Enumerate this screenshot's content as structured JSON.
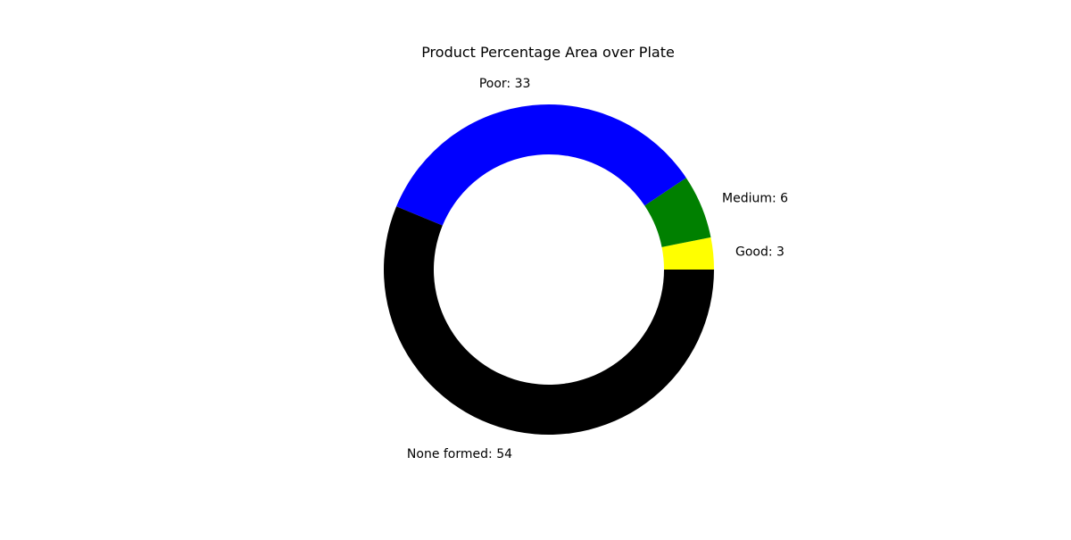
{
  "chart_data": {
    "type": "pie",
    "donut": true,
    "title": "Product Percentage Area over Plate",
    "start_angle": 0,
    "direction": "counterclockwise",
    "slices": [
      {
        "label": "Good",
        "value": 3,
        "color": "#ffff00",
        "display": "Good: 3"
      },
      {
        "label": "Medium",
        "value": 6,
        "color": "#008000",
        "display": "Medium: 6"
      },
      {
        "label": "Poor",
        "value": 33,
        "color": "#0000ff",
        "display": "Poor: 33"
      },
      {
        "label": "None formed",
        "value": 54,
        "color": "#000000",
        "display": "None formed: 54"
      }
    ]
  }
}
